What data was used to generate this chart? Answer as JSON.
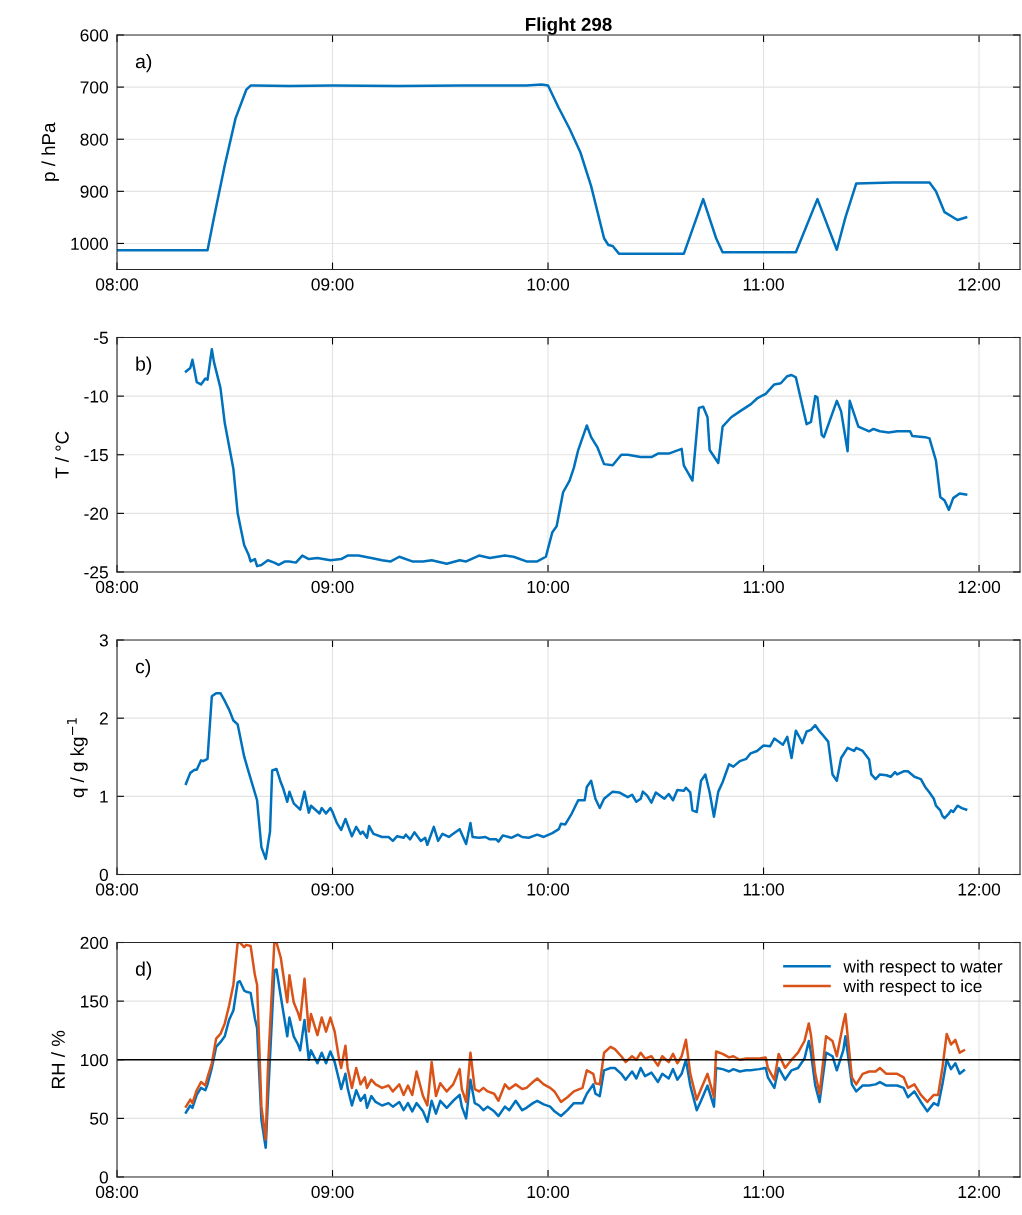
{
  "chart_data": [
    {
      "type": "line",
      "title": "Flight 298",
      "ylabel": "p / hPa",
      "annotations": [
        "a)"
      ],
      "grid": true,
      "xlim": [
        8,
        12.19
      ],
      "ylim": [
        1050,
        600
      ],
      "yticks": [
        600,
        700,
        800,
        900,
        1000
      ],
      "xticks": [
        {
          "value": 8,
          "label": "08:00"
        },
        {
          "value": 9,
          "label": "09:00"
        },
        {
          "value": 10,
          "label": "10:00"
        },
        {
          "value": 11,
          "label": "11:00"
        },
        {
          "value": 12,
          "label": "12:00"
        }
      ],
      "series": [
        {
          "color": "#0072bd",
          "x": [
            8.0,
            8.42,
            8.45,
            8.5,
            8.55,
            8.6,
            8.62,
            8.8,
            9.0,
            9.3,
            9.6,
            9.9,
            9.97,
            10.0,
            10.05,
            10.1,
            10.15,
            10.2,
            10.26,
            10.28,
            10.3,
            10.33,
            10.5,
            10.62,
            10.63,
            10.72,
            10.78,
            10.81,
            11.0,
            11.15,
            11.25,
            11.34,
            11.38,
            11.43,
            11.6,
            11.77,
            11.8,
            11.84,
            11.9,
            11.94
          ],
          "values": [
            1013,
            1013,
            950,
            850,
            760,
            705,
            697,
            698,
            697,
            698,
            697,
            697,
            695,
            697,
            740,
            780,
            825,
            890,
            990,
            1003,
            1005,
            1020,
            1020,
            1020,
            1020,
            915,
            990,
            1017,
            1017,
            1017,
            915,
            1012,
            950,
            885,
            883,
            883,
            900,
            940,
            955,
            950
          ]
        }
      ]
    },
    {
      "type": "line",
      "ylabel": "T / °C",
      "annotations": [
        "b)"
      ],
      "grid": true,
      "xlim": [
        8,
        12.19
      ],
      "ylim": [
        -25,
        -5
      ],
      "yticks": [
        -25,
        -20,
        -15,
        -10,
        -5
      ],
      "xticks": [
        {
          "value": 8,
          "label": "08:00"
        },
        {
          "value": 9,
          "label": "09:00"
        },
        {
          "value": 10,
          "label": "10:00"
        },
        {
          "value": 11,
          "label": "11:00"
        },
        {
          "value": 12,
          "label": "12:00"
        }
      ],
      "series": [
        {
          "color": "#0072bd",
          "x": [
            8.32,
            8.34,
            8.35,
            8.37,
            8.39,
            8.41,
            8.42,
            8.44,
            8.45,
            8.48,
            8.5,
            8.54,
            8.56,
            8.59,
            8.61,
            8.62,
            8.64,
            8.65,
            8.67,
            8.7,
            8.73,
            8.75,
            8.78,
            8.8,
            8.83,
            8.86,
            8.89,
            8.93,
            8.99,
            9.04,
            9.07,
            9.12,
            9.18,
            9.23,
            9.27,
            9.31,
            9.37,
            9.42,
            9.46,
            9.53,
            9.59,
            9.62,
            9.68,
            9.73,
            9.8,
            9.84,
            9.9,
            9.95,
            9.99,
            10.02,
            10.04,
            10.07,
            10.1,
            10.12,
            10.14,
            10.18,
            10.2,
            10.23,
            10.26,
            10.3,
            10.34,
            10.37,
            10.43,
            10.48,
            10.51,
            10.56,
            10.62,
            10.63,
            10.67,
            10.7,
            10.72,
            10.74,
            10.75,
            10.79,
            10.81,
            10.85,
            10.89,
            10.94,
            10.97,
            11.01,
            11.05,
            11.08,
            11.11,
            11.13,
            11.15,
            11.18,
            11.2,
            11.22,
            11.24,
            11.25,
            11.27,
            11.28,
            11.34,
            11.36,
            11.39,
            11.4,
            11.44,
            11.49,
            11.51,
            11.54,
            11.58,
            11.62,
            11.68,
            11.69,
            11.75,
            11.77,
            11.8,
            11.82,
            11.84,
            11.86,
            11.88,
            11.91,
            11.94
          ],
          "values": [
            -7.9,
            -7.6,
            -6.9,
            -8.8,
            -9.0,
            -8.5,
            -8.6,
            -6.0,
            -7.1,
            -9.3,
            -12.3,
            -16.2,
            -20.0,
            -22.7,
            -23.5,
            -24.1,
            -23.9,
            -24.5,
            -24.4,
            -24.0,
            -24.2,
            -24.4,
            -24.1,
            -24.1,
            -24.2,
            -23.6,
            -23.9,
            -23.8,
            -24.0,
            -23.9,
            -23.6,
            -23.6,
            -23.8,
            -24.0,
            -24.1,
            -23.7,
            -24.1,
            -24.1,
            -24.0,
            -24.3,
            -24.0,
            -24.1,
            -23.6,
            -23.8,
            -23.6,
            -23.7,
            -24.1,
            -24.1,
            -23.7,
            -21.6,
            -21.1,
            -18.2,
            -17.2,
            -16.1,
            -14.6,
            -12.5,
            -13.5,
            -14.4,
            -15.8,
            -15.9,
            -15.0,
            -15.0,
            -15.2,
            -15.2,
            -14.9,
            -14.9,
            -14.5,
            -15.9,
            -17.2,
            -11.0,
            -10.9,
            -11.8,
            -14.6,
            -15.7,
            -12.6,
            -11.8,
            -11.3,
            -10.7,
            -10.2,
            -9.8,
            -9.0,
            -8.9,
            -8.3,
            -8.2,
            -8.4,
            -10.8,
            -12.4,
            -12.2,
            -10.0,
            -10.1,
            -13.3,
            -13.5,
            -10.4,
            -11.3,
            -14.7,
            -10.4,
            -12.6,
            -13.0,
            -12.8,
            -13.0,
            -13.1,
            -13.0,
            -13.0,
            -13.4,
            -13.5,
            -13.6,
            -15.5,
            -18.6,
            -18.9,
            -19.7,
            -18.7,
            -18.3,
            -18.4
          ]
        }
      ]
    },
    {
      "type": "line",
      "ylabel": "q / g kg$^{−1}$",
      "annotations": [
        "c)"
      ],
      "grid": true,
      "xlim": [
        8,
        12.19
      ],
      "ylim": [
        0,
        3
      ],
      "yticks": [
        0,
        1,
        2,
        3
      ],
      "xticks": [
        {
          "value": 8,
          "label": "08:00"
        },
        {
          "value": 9,
          "label": "09:00"
        },
        {
          "value": 10,
          "label": "10:00"
        },
        {
          "value": 11,
          "label": "11:00"
        },
        {
          "value": 12,
          "label": "12:00"
        }
      ],
      "series": [
        {
          "color": "#0072bd",
          "x": [
            8.32,
            8.34,
            8.36,
            8.37,
            8.39,
            8.4,
            8.42,
            8.44,
            8.46,
            8.48,
            8.5,
            8.52,
            8.54,
            8.56,
            8.59,
            8.61,
            8.65,
            8.67,
            8.69,
            8.71,
            8.72,
            8.74,
            8.76,
            8.77,
            8.79,
            8.8,
            8.82,
            8.85,
            8.87,
            8.89,
            8.9,
            8.94,
            8.95,
            8.97,
            8.99,
            9.0,
            9.02,
            9.04,
            9.06,
            9.09,
            9.11,
            9.13,
            9.14,
            9.16,
            9.17,
            9.19,
            9.23,
            9.26,
            9.28,
            9.3,
            9.33,
            9.34,
            9.36,
            9.38,
            9.41,
            9.43,
            9.44,
            9.47,
            9.49,
            9.51,
            9.54,
            9.56,
            9.59,
            9.62,
            9.64,
            9.65,
            9.68,
            9.71,
            9.73,
            9.76,
            9.77,
            9.79,
            9.83,
            9.86,
            9.88,
            9.91,
            9.95,
            9.98,
            10.02,
            10.05,
            10.06,
            10.08,
            10.11,
            10.14,
            10.17,
            10.18,
            10.2,
            10.22,
            10.24,
            10.26,
            10.3,
            10.33,
            10.37,
            10.39,
            10.41,
            10.43,
            10.44,
            10.46,
            10.48,
            10.5,
            10.54,
            10.56,
            10.58,
            10.6,
            10.63,
            10.64,
            10.66,
            10.67,
            10.69,
            10.71,
            10.73,
            10.75,
            10.77,
            10.79,
            10.81,
            10.84,
            10.86,
            10.89,
            10.92,
            10.94,
            10.97,
            11.0,
            11.03,
            11.05,
            11.09,
            11.11,
            11.13,
            11.15,
            11.17,
            11.18,
            11.2,
            11.22,
            11.24,
            11.26,
            11.27,
            11.3,
            11.32,
            11.34,
            11.36,
            11.39,
            11.42,
            11.43,
            11.46,
            11.49,
            11.5,
            11.52,
            11.54,
            11.57,
            11.59,
            11.61,
            11.62,
            11.65,
            11.67,
            11.7,
            11.73,
            11.75,
            11.77,
            11.79,
            11.8,
            11.82,
            11.83,
            11.84,
            11.86,
            11.87,
            11.88,
            11.9,
            11.92,
            11.94
          ],
          "values": [
            1.16,
            1.3,
            1.34,
            1.34,
            1.46,
            1.45,
            1.48,
            2.28,
            2.32,
            2.32,
            2.22,
            2.11,
            1.97,
            1.92,
            1.51,
            1.32,
            0.95,
            0.35,
            0.2,
            0.55,
            1.33,
            1.35,
            1.18,
            1.11,
            0.93,
            1.06,
            0.91,
            0.83,
            1.06,
            0.79,
            0.88,
            0.78,
            0.85,
            0.78,
            0.85,
            0.8,
            0.66,
            0.57,
            0.71,
            0.49,
            0.61,
            0.52,
            0.55,
            0.47,
            0.62,
            0.52,
            0.48,
            0.48,
            0.43,
            0.49,
            0.47,
            0.51,
            0.45,
            0.54,
            0.43,
            0.47,
            0.38,
            0.61,
            0.43,
            0.52,
            0.48,
            0.52,
            0.58,
            0.39,
            0.66,
            0.48,
            0.47,
            0.48,
            0.45,
            0.45,
            0.42,
            0.5,
            0.47,
            0.51,
            0.48,
            0.47,
            0.51,
            0.48,
            0.53,
            0.58,
            0.65,
            0.64,
            0.78,
            0.95,
            0.95,
            1.12,
            1.2,
            0.97,
            0.85,
            0.97,
            1.06,
            1.05,
            0.99,
            1.02,
            0.93,
            0.97,
            1.06,
            1.01,
            0.92,
            1.05,
            0.97,
            1.03,
            0.95,
            1.08,
            1.07,
            1.11,
            1.05,
            0.82,
            0.8,
            1.2,
            1.28,
            1.05,
            0.74,
            1.06,
            1.18,
            1.41,
            1.38,
            1.45,
            1.48,
            1.55,
            1.58,
            1.65,
            1.64,
            1.74,
            1.66,
            1.76,
            1.49,
            1.84,
            1.74,
            1.68,
            1.83,
            1.85,
            1.91,
            1.83,
            1.8,
            1.7,
            1.28,
            1.2,
            1.49,
            1.62,
            1.58,
            1.62,
            1.58,
            1.47,
            1.28,
            1.22,
            1.28,
            1.27,
            1.25,
            1.31,
            1.28,
            1.32,
            1.32,
            1.25,
            1.22,
            1.12,
            1.05,
            0.97,
            0.88,
            0.82,
            0.75,
            0.72,
            0.78,
            0.82,
            0.8,
            0.88,
            0.85,
            0.83
          ]
        }
      ]
    },
    {
      "type": "line",
      "ylabel": "RH / %",
      "annotations": [
        "d)"
      ],
      "grid": true,
      "legend": "top right",
      "xlim": [
        8,
        12.19
      ],
      "ylim": [
        0,
        200
      ],
      "yticks": [
        0,
        50,
        100,
        150,
        200
      ],
      "xticks": [
        {
          "value": 8,
          "label": "08:00"
        },
        {
          "value": 9,
          "label": "09:00"
        },
        {
          "value": 10,
          "label": "10:00"
        },
        {
          "value": 11,
          "label": "11:00"
        },
        {
          "value": 12,
          "label": "12:00"
        }
      ],
      "ref_lines": [
        {
          "axis": "y",
          "value": 100,
          "color": "#000000"
        }
      ],
      "x": [
        8.32,
        8.34,
        8.35,
        8.37,
        8.39,
        8.41,
        8.42,
        8.44,
        8.46,
        8.48,
        8.5,
        8.52,
        8.54,
        8.56,
        8.57,
        8.59,
        8.6,
        8.62,
        8.64,
        8.65,
        8.67,
        8.69,
        8.7,
        8.73,
        8.74,
        8.76,
        8.79,
        8.8,
        8.82,
        8.84,
        8.85,
        8.87,
        8.89,
        8.9,
        8.93,
        8.95,
        8.97,
        8.99,
        9.01,
        9.03,
        9.04,
        9.06,
        9.07,
        9.09,
        9.11,
        9.13,
        9.15,
        9.16,
        9.18,
        9.2,
        9.23,
        9.26,
        9.28,
        9.31,
        9.33,
        9.35,
        9.37,
        9.39,
        9.42,
        9.44,
        9.46,
        9.48,
        9.5,
        9.53,
        9.56,
        9.59,
        9.6,
        9.62,
        9.64,
        9.66,
        9.68,
        9.7,
        9.72,
        9.75,
        9.77,
        9.8,
        9.82,
        9.85,
        9.88,
        9.9,
        9.93,
        9.95,
        9.98,
        10.01,
        10.03,
        10.06,
        10.09,
        10.12,
        10.16,
        10.18,
        10.21,
        10.22,
        10.24,
        10.26,
        10.29,
        10.31,
        10.34,
        10.36,
        10.39,
        10.41,
        10.43,
        10.45,
        10.48,
        10.51,
        10.53,
        10.56,
        10.58,
        10.6,
        10.62,
        10.64,
        10.66,
        10.69,
        10.71,
        10.74,
        10.77,
        10.78,
        10.81,
        10.84,
        10.86,
        10.89,
        10.92,
        10.94,
        10.98,
        11.01,
        11.02,
        11.05,
        11.07,
        11.1,
        11.13,
        11.16,
        11.19,
        11.21,
        11.22,
        11.24,
        11.26,
        11.29,
        11.32,
        11.34,
        11.37,
        11.38,
        11.41,
        11.43,
        11.46,
        11.49,
        11.52,
        11.54,
        11.57,
        11.62,
        11.65,
        11.67,
        11.7,
        11.73,
        11.76,
        11.79,
        11.81,
        11.83,
        11.85,
        11.87,
        11.89,
        11.91,
        11.93
      ],
      "series": [
        {
          "name": "with respect to water",
          "color": "#0072bd",
          "values": [
            55,
            61,
            59,
            70,
            76,
            74,
            79,
            93,
            111,
            115,
            120,
            134,
            142,
            166,
            167,
            159,
            158,
            157,
            135,
            127,
            49,
            25,
            65,
            176,
            177,
            154,
            120,
            136,
            120,
            113,
            108,
            134,
            100,
            108,
            97,
            106,
            97,
            107,
            98,
            83,
            75,
            88,
            76,
            61,
            74,
            65,
            70,
            59,
            69,
            64,
            61,
            63,
            60,
            64,
            57,
            63,
            56,
            63,
            56,
            47,
            65,
            54,
            65,
            59,
            65,
            70,
            60,
            50,
            83,
            63,
            61,
            57,
            60,
            56,
            52,
            60,
            57,
            65,
            57,
            59,
            63,
            65,
            62,
            60,
            56,
            52,
            57,
            63,
            63,
            71,
            79,
            71,
            69,
            91,
            93,
            93,
            88,
            83,
            90,
            84,
            93,
            86,
            89,
            81,
            88,
            84,
            92,
            83,
            88,
            100,
            78,
            57,
            65,
            78,
            60,
            93,
            92,
            90,
            92,
            90,
            91,
            91,
            92,
            93,
            85,
            76,
            93,
            83,
            91,
            93,
            101,
            116,
            106,
            78,
            64,
            106,
            103,
            91,
            108,
            120,
            79,
            73,
            78,
            78,
            79,
            81,
            78,
            78,
            76,
            68,
            73,
            64,
            56,
            63,
            61,
            79,
            100,
            92,
            97,
            88,
            91
          ]
        },
        {
          "name": "with respect to ice",
          "color": "#d95319",
          "values": [
            60,
            66,
            63,
            74,
            81,
            78,
            85,
            97,
            118,
            122,
            131,
            146,
            164,
            200,
            200,
            196,
            198,
            197,
            172,
            164,
            60,
            32,
            91,
            200,
            200,
            187,
            149,
            172,
            149,
            140,
            134,
            169,
            124,
            139,
            121,
            136,
            124,
            136,
            124,
            101,
            93,
            112,
            93,
            76,
            93,
            79,
            85,
            76,
            83,
            79,
            76,
            78,
            73,
            79,
            70,
            78,
            70,
            90,
            69,
            61,
            98,
            69,
            80,
            73,
            79,
            92,
            75,
            64,
            106,
            75,
            73,
            76,
            73,
            71,
            65,
            79,
            75,
            79,
            75,
            76,
            81,
            84,
            79,
            76,
            73,
            64,
            68,
            73,
            76,
            91,
            88,
            80,
            79,
            106,
            111,
            109,
            103,
            98,
            103,
            100,
            106,
            101,
            103,
            95,
            103,
            98,
            105,
            97,
            103,
            117,
            88,
            66,
            75,
            88,
            68,
            107,
            105,
            102,
            103,
            100,
            101,
            101,
            101,
            102,
            93,
            83,
            105,
            93,
            100,
            106,
            116,
            131,
            121,
            88,
            71,
            120,
            116,
            103,
            131,
            139,
            85,
            79,
            88,
            90,
            90,
            93,
            88,
            88,
            85,
            76,
            79,
            70,
            64,
            70,
            70,
            93,
            122,
            113,
            117,
            106,
            108
          ]
        }
      ]
    }
  ]
}
